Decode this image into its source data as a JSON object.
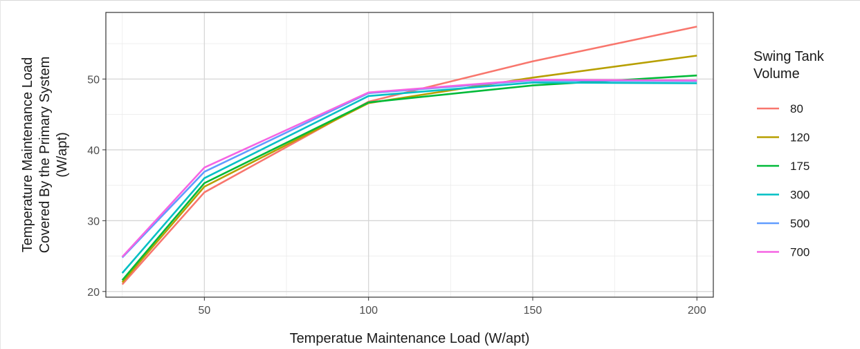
{
  "chart_data": {
    "type": "line",
    "xlabel": "Temperatue Maintenance Load (W/apt)",
    "ylabel_lines": [
      "Temperature Maintenance Load",
      "Covered By the Primary System",
      "(W/apt)"
    ],
    "xlim": [
      20,
      205
    ],
    "ylim": [
      19.2,
      59.4
    ],
    "x_ticks": [
      50,
      100,
      150,
      200
    ],
    "y_ticks": [
      20,
      30,
      40,
      50
    ],
    "grid": true,
    "legend_position": "right",
    "legend_title_lines": [
      "Swing Tank",
      "Volume"
    ],
    "series": [
      {
        "name": "80",
        "color": "#F8766D",
        "x": [
          25,
          50,
          100,
          150,
          200
        ],
        "y": [
          21.0,
          34.0,
          46.8,
          52.5,
          57.4
        ]
      },
      {
        "name": "120",
        "color": "#B79F00",
        "x": [
          25,
          50,
          100,
          150,
          200
        ],
        "y": [
          21.3,
          34.8,
          46.6,
          50.2,
          53.3
        ]
      },
      {
        "name": "175",
        "color": "#00BA38",
        "x": [
          25,
          50,
          100,
          150,
          200
        ],
        "y": [
          21.6,
          35.3,
          46.7,
          49.1,
          50.5
        ]
      },
      {
        "name": "300",
        "color": "#00BFC4",
        "x": [
          25,
          50,
          100,
          150,
          200
        ],
        "y": [
          22.6,
          36.0,
          47.6,
          49.5,
          49.4
        ]
      },
      {
        "name": "500",
        "color": "#619CFF",
        "x": [
          25,
          50,
          100,
          150,
          200
        ],
        "y": [
          24.8,
          36.9,
          48.0,
          49.8,
          49.7
        ]
      },
      {
        "name": "700",
        "color": "#F564E3",
        "x": [
          25,
          50,
          100,
          150,
          200
        ],
        "y": [
          24.9,
          37.5,
          48.1,
          49.9,
          49.8
        ]
      }
    ]
  }
}
